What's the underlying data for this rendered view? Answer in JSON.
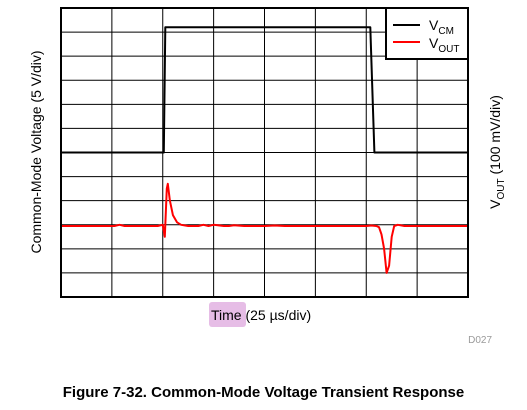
{
  "chart_data": {
    "type": "line",
    "xlabel_highlight": "Time",
    "xlabel_rest": " (25 µs/div)",
    "ylabel_left": "Common-Mode Voltage (5 V/div)",
    "ylabel_right_main": "V",
    "ylabel_right_sub": "OUT",
    "ylabel_right_rest": " (100 mV/div)",
    "xlim": [
      0,
      8
    ],
    "ylim": [
      0,
      12
    ],
    "grid": true,
    "legend_position": "top-right",
    "series": [
      {
        "name_main": "V",
        "name_sub": "CM",
        "color": "#000000",
        "x": [
          0,
          2.02,
          2.05,
          6.08,
          6.16,
          8
        ],
        "y": [
          6,
          6,
          11.2,
          11.2,
          6,
          6
        ]
      },
      {
        "name_main": "V",
        "name_sub": "OUT",
        "color": "#ff0000",
        "x": [
          0,
          1.05,
          1.15,
          1.25,
          1.9,
          2.0,
          2.04,
          2.08,
          2.1,
          2.14,
          2.2,
          2.28,
          2.36,
          2.5,
          2.7,
          2.8,
          2.9,
          3.0,
          3.2,
          3.3,
          3.4,
          3.6,
          3.8,
          4.0,
          4.2,
          4.4,
          4.6,
          4.8,
          5.0,
          5.2,
          5.4,
          5.6,
          5.8,
          6.0,
          6.1,
          6.2,
          6.25,
          6.3,
          6.35,
          6.4,
          6.45,
          6.5,
          6.55,
          6.62,
          6.75,
          7.0,
          8
        ],
        "y": [
          2.95,
          2.95,
          3.0,
          2.95,
          2.95,
          3.0,
          2.5,
          4.5,
          4.7,
          4.0,
          3.4,
          3.1,
          3.0,
          2.95,
          2.95,
          3.0,
          2.95,
          3.0,
          2.95,
          2.95,
          2.98,
          2.95,
          2.95,
          2.95,
          2.97,
          2.95,
          2.95,
          2.95,
          2.95,
          2.95,
          2.95,
          2.95,
          2.95,
          2.95,
          2.97,
          2.95,
          2.9,
          2.6,
          2.0,
          1.0,
          1.3,
          2.5,
          2.95,
          3.0,
          2.95,
          2.95,
          2.95
        ]
      }
    ]
  },
  "figure_id": "D027",
  "caption": "Figure 7-32. Common-Mode Voltage Transient Response"
}
